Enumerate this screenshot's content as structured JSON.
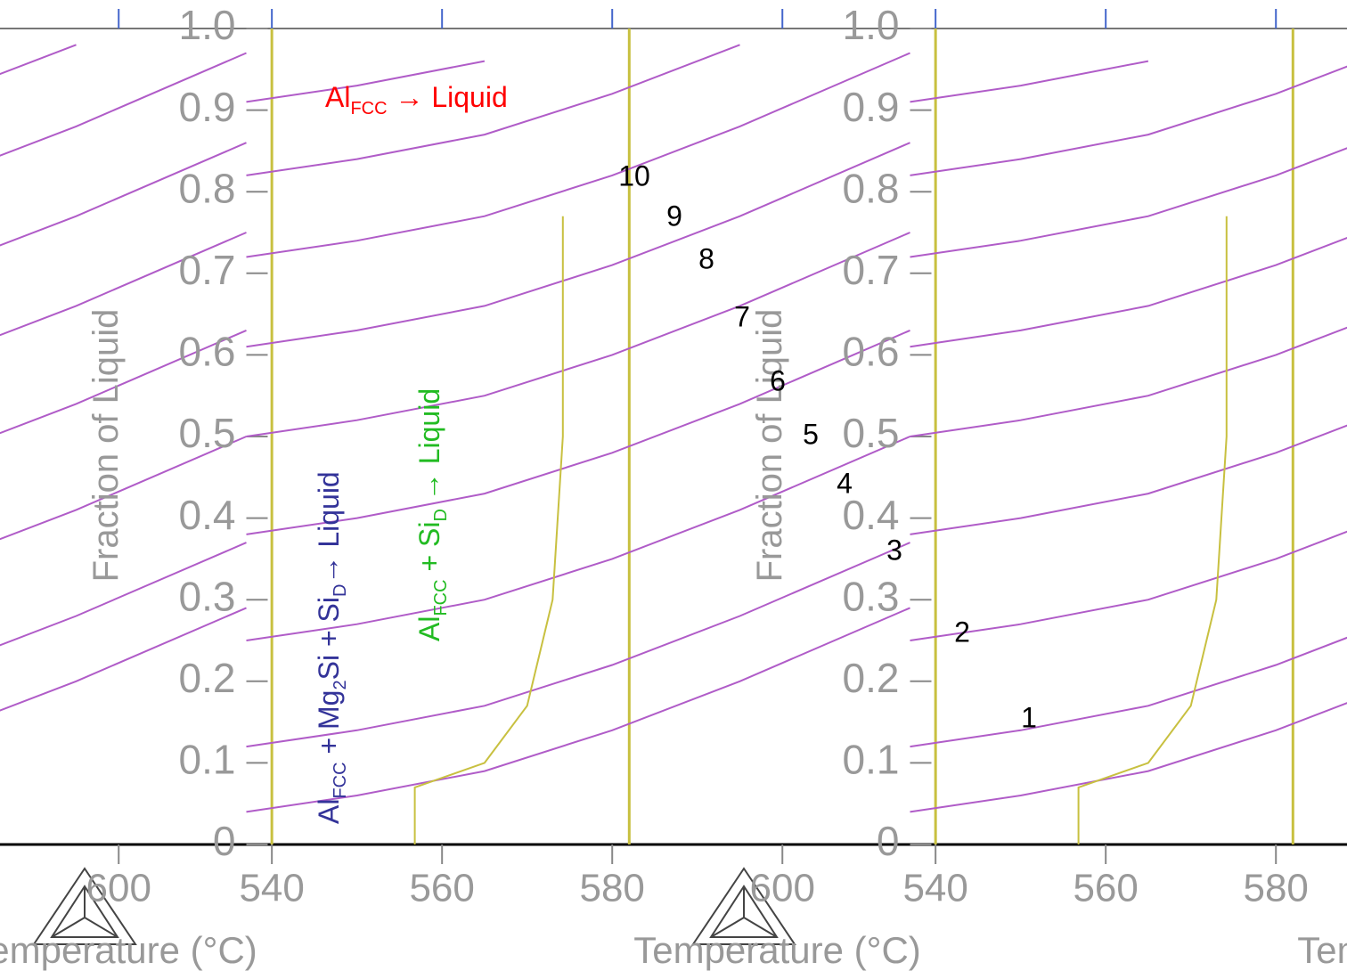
{
  "chart_data": {
    "type": "line",
    "x_label": "Temperature (°C)",
    "y_label": "Fraction of Liquid",
    "xlim": [
      537,
      615
    ],
    "ylim": [
      0,
      1
    ],
    "xticks": [
      540,
      560,
      580,
      600
    ],
    "yticks": [
      0,
      0.1,
      0.2,
      0.3,
      0.4,
      0.5,
      0.6,
      0.7,
      0.8,
      0.9,
      {
        "value": 1,
        "label": "1.0"
      }
    ],
    "vlines": [
      540,
      582
    ],
    "vline_color": "#c8c040",
    "x": [
      537,
      550,
      565,
      580,
      595,
      615
    ],
    "series": [
      {
        "name": "1",
        "color": "#b05cc8",
        "values": [
          0.04,
          0.06,
          0.09,
          0.14,
          0.2,
          0.29
        ]
      },
      {
        "name": "2",
        "color": "#b05cc8",
        "values": [
          0.12,
          0.14,
          0.17,
          0.22,
          0.28,
          0.37
        ]
      },
      {
        "name": "3",
        "color": "#b05cc8",
        "values": [
          0.25,
          0.27,
          0.3,
          0.35,
          0.41,
          0.5
        ]
      },
      {
        "name": "4",
        "color": "#b05cc8",
        "values": [
          0.38,
          0.4,
          0.43,
          0.48,
          0.54,
          0.63
        ]
      },
      {
        "name": "5",
        "color": "#b05cc8",
        "values": [
          0.5,
          0.52,
          0.55,
          0.6,
          0.66,
          0.75
        ]
      },
      {
        "name": "6",
        "color": "#b05cc8",
        "values": [
          0.61,
          0.63,
          0.66,
          0.71,
          0.77,
          0.86
        ]
      },
      {
        "name": "7",
        "color": "#b05cc8",
        "values": [
          0.72,
          0.74,
          0.77,
          0.82,
          0.88,
          0.97
        ]
      },
      {
        "name": "8",
        "color": "#b05cc8",
        "values": [
          0.82,
          0.84,
          0.87,
          0.92,
          0.98,
          null
        ]
      },
      {
        "name": "9",
        "color": "#b05cc8",
        "values": [
          0.91,
          0.93,
          0.96,
          null,
          null,
          null
        ]
      },
      {
        "name": "10",
        "color": "#b05cc8",
        "values": [
          0.99,
          null,
          null,
          null,
          null,
          null
        ]
      }
    ],
    "boundary": {
      "color": "#c8c040",
      "x": [
        556.8,
        556.8,
        565,
        570,
        573,
        574.2,
        574.2
      ],
      "values": [
        0,
        0.07,
        0.1,
        0.17,
        0.3,
        0.5,
        0.77
      ]
    },
    "annotations": [
      {
        "color": "#ff0000",
        "parts": [
          {
            "text": "Al"
          },
          {
            "text": "FCC",
            "sub": true
          },
          {
            "text": " → Liquid"
          }
        ]
      },
      {
        "color": "#333399",
        "parts": [
          {
            "text": "Al"
          },
          {
            "text": "FCC",
            "sub": true
          },
          {
            "text": " + Mg"
          },
          {
            "text": "2",
            "sub": true
          },
          {
            "text": "Si + Si"
          },
          {
            "text": "D",
            "sub": true
          },
          {
            "text": "→ Liquid"
          }
        ]
      },
      {
        "color": "#22bb22",
        "parts": [
          {
            "text": "Al"
          },
          {
            "text": "FCC",
            "sub": true
          },
          {
            "text": " + Si"
          },
          {
            "text": "D",
            "sub": true
          },
          {
            "text": " → Liquid"
          }
        ]
      }
    ]
  }
}
